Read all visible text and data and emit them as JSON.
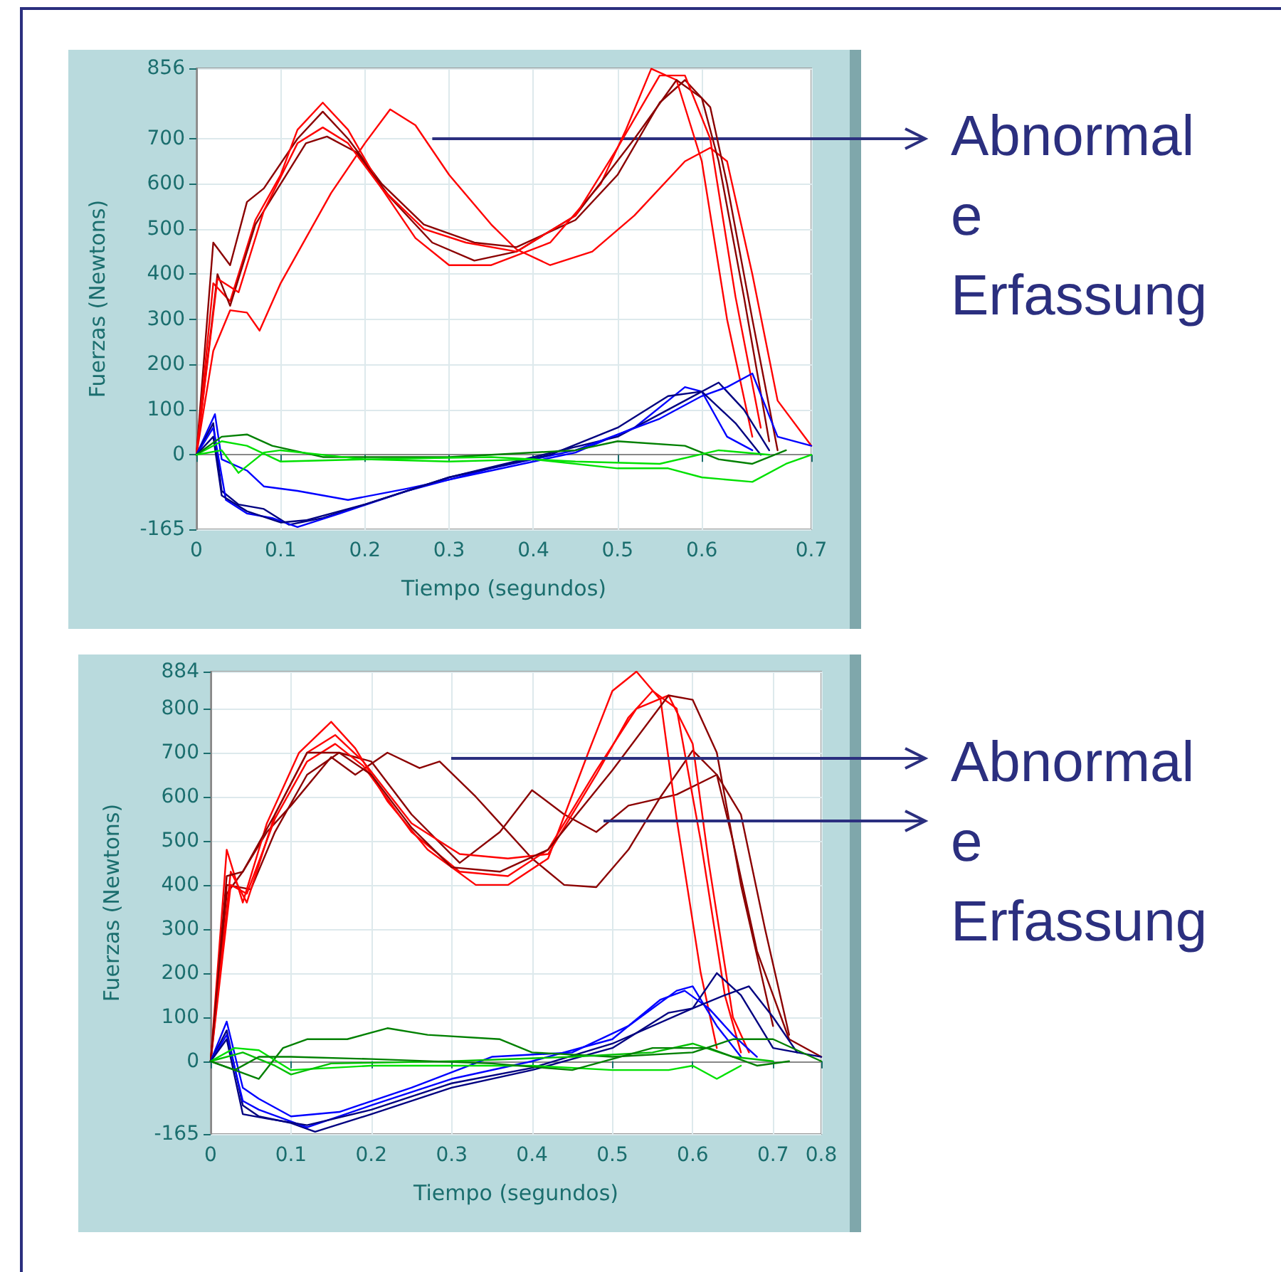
{
  "chart_data": [
    {
      "type": "line",
      "xlabel": "Tiempo (segundos)",
      "ylabel": "Fuerzas (Newtons)",
      "grid": true,
      "marker": "none",
      "line_style": "solid",
      "xlim": [
        0,
        0.73
      ],
      "xticks": [
        0,
        0.1,
        0.2,
        0.3,
        0.4,
        0.5,
        0.6,
        {
          "value": 0.73,
          "label": "0.7"
        }
      ],
      "ylim": [
        -165,
        856
      ],
      "yticks": [
        -165,
        0,
        100,
        200,
        300,
        400,
        500,
        600,
        700,
        856
      ],
      "annotations": [
        {
          "text": "Abnormal\ne\nErfassung",
          "x": 0.28,
          "y": 700
        }
      ],
      "series": [
        {
          "color": "#ff0000",
          "x": [
            0,
            0.02,
            0.04,
            0.06,
            0.075,
            0.1,
            0.13,
            0.16,
            0.2,
            0.23,
            0.26,
            0.3,
            0.35,
            0.38,
            0.42,
            0.47,
            0.52,
            0.58,
            0.61,
            0.63,
            0.66,
            0.69,
            0.73
          ],
          "values": [
            0,
            230,
            320,
            315,
            275,
            380,
            480,
            580,
            690,
            765,
            730,
            620,
            510,
            455,
            420,
            450,
            530,
            650,
            680,
            650,
            400,
            120,
            20
          ]
        },
        {
          "color": "#8b0000",
          "x": [
            0,
            0.02,
            0.04,
            0.06,
            0.08,
            0.12,
            0.15,
            0.18,
            0.22,
            0.27,
            0.33,
            0.38,
            0.45,
            0.5,
            0.55,
            0.58,
            0.61,
            0.63,
            0.66,
            0.69
          ],
          "values": [
            0,
            470,
            420,
            560,
            590,
            700,
            760,
            700,
            600,
            510,
            470,
            460,
            520,
            620,
            780,
            830,
            770,
            600,
            300,
            10
          ]
        },
        {
          "color": "#ff0000",
          "x": [
            0,
            0.02,
            0.04,
            0.07,
            0.1,
            0.12,
            0.15,
            0.18,
            0.22,
            0.26,
            0.3,
            0.35,
            0.42,
            0.48,
            0.51,
            0.54,
            0.57,
            0.6,
            0.63,
            0.66
          ],
          "values": [
            0,
            380,
            340,
            520,
            620,
            720,
            780,
            720,
            590,
            480,
            420,
            420,
            470,
            600,
            720,
            855,
            830,
            650,
            300,
            40
          ]
        },
        {
          "color": "#8b0000",
          "x": [
            0,
            0.025,
            0.04,
            0.07,
            0.1,
            0.13,
            0.155,
            0.19,
            0.23,
            0.28,
            0.33,
            0.38,
            0.45,
            0.52,
            0.57,
            0.6,
            0.62,
            0.65,
            0.68
          ],
          "values": [
            0,
            400,
            330,
            510,
            600,
            690,
            705,
            670,
            570,
            470,
            430,
            450,
            530,
            700,
            830,
            790,
            650,
            350,
            30
          ]
        },
        {
          "color": "#ff0000",
          "x": [
            0,
            0.025,
            0.05,
            0.08,
            0.12,
            0.15,
            0.18,
            0.22,
            0.27,
            0.32,
            0.38,
            0.45,
            0.5,
            0.55,
            0.58,
            0.61,
            0.64,
            0.67
          ],
          "values": [
            0,
            390,
            360,
            540,
            690,
            725,
            690,
            590,
            500,
            470,
            450,
            530,
            680,
            840,
            840,
            700,
            350,
            60
          ]
        },
        {
          "color": "#0000ff",
          "x": [
            0,
            0.022,
            0.03,
            0.06,
            0.08,
            0.12,
            0.18,
            0.25,
            0.35,
            0.45,
            0.52,
            0.58,
            0.6,
            0.63,
            0.66
          ],
          "values": [
            0,
            90,
            -10,
            -35,
            -70,
            -80,
            -100,
            -75,
            -35,
            5,
            60,
            150,
            140,
            40,
            10
          ]
        },
        {
          "color": "#000080",
          "x": [
            0,
            0.02,
            0.03,
            0.05,
            0.08,
            0.11,
            0.15,
            0.2,
            0.3,
            0.4,
            0.5,
            0.58,
            0.62,
            0.65,
            0.68
          ],
          "values": [
            0,
            70,
            -80,
            -110,
            -120,
            -155,
            -140,
            -110,
            -50,
            -5,
            40,
            120,
            160,
            100,
            10
          ]
        },
        {
          "color": "#0000ff",
          "x": [
            0,
            0.02,
            0.035,
            0.06,
            0.09,
            0.12,
            0.17,
            0.25,
            0.35,
            0.45,
            0.55,
            0.6,
            0.63,
            0.66,
            0.69,
            0.73
          ],
          "values": [
            0,
            60,
            -100,
            -130,
            -140,
            -160,
            -130,
            -80,
            -30,
            10,
            80,
            130,
            150,
            180,
            40,
            20
          ]
        },
        {
          "color": "#000080",
          "x": [
            0,
            0.02,
            0.03,
            0.06,
            0.1,
            0.13,
            0.2,
            0.3,
            0.42,
            0.5,
            0.56,
            0.6,
            0.64,
            0.67
          ],
          "values": [
            0,
            40,
            -90,
            -125,
            -150,
            -145,
            -110,
            -50,
            0,
            60,
            130,
            140,
            70,
            0
          ]
        },
        {
          "color": "#00e000",
          "x": [
            0,
            0.03,
            0.06,
            0.1,
            0.2,
            0.3,
            0.4,
            0.5,
            0.56,
            0.6,
            0.66,
            0.7,
            0.73
          ],
          "values": [
            0,
            30,
            20,
            -15,
            -10,
            -15,
            -10,
            -30,
            -30,
            -50,
            -60,
            -20,
            0
          ]
        },
        {
          "color": "#008000",
          "x": [
            0,
            0.03,
            0.06,
            0.09,
            0.15,
            0.3,
            0.45,
            0.5,
            0.58,
            0.62,
            0.66,
            0.7
          ],
          "values": [
            0,
            40,
            45,
            20,
            -5,
            -5,
            10,
            30,
            20,
            -10,
            -20,
            10
          ]
        },
        {
          "color": "#00e000",
          "x": [
            0,
            0.03,
            0.05,
            0.08,
            0.1,
            0.2,
            0.35,
            0.45,
            0.55,
            0.62,
            0.68
          ],
          "values": [
            0,
            10,
            -40,
            5,
            10,
            -10,
            -5,
            -15,
            -20,
            10,
            0
          ]
        }
      ]
    },
    {
      "type": "line",
      "xlabel": "Tiempo (segundos)",
      "ylabel": "Fuerzas (Newtons)",
      "grid": true,
      "marker": "none",
      "line_style": "solid",
      "xlim": [
        0,
        0.76
      ],
      "xticks": [
        0,
        0.1,
        0.2,
        0.3,
        0.4,
        0.5,
        0.6,
        0.7,
        {
          "value": 0.76,
          "label": "0.8"
        }
      ],
      "ylim": [
        -165,
        884
      ],
      "yticks": [
        -165,
        0,
        100,
        200,
        300,
        400,
        500,
        600,
        700,
        800,
        884
      ],
      "annotations": [
        "Abnormal\ne\nErfassung"
      ],
      "series": [
        {
          "color": "#8b0000",
          "x": [
            0,
            0.02,
            0.04,
            0.07,
            0.1,
            0.15,
            0.18,
            0.22,
            0.26,
            0.285,
            0.33,
            0.36,
            0.4,
            0.44,
            0.48,
            0.52,
            0.56,
            0.6,
            0.63,
            0.65,
            0.68,
            0.72,
            0.76
          ],
          "values": [
            0,
            380,
            430,
            520,
            580,
            690,
            650,
            700,
            665,
            680,
            600,
            540,
            460,
            400,
            395,
            480,
            600,
            705,
            650,
            500,
            250,
            50,
            10
          ]
        },
        {
          "color": "#8b0000",
          "x": [
            0,
            0.02,
            0.05,
            0.08,
            0.12,
            0.16,
            0.2,
            0.25,
            0.31,
            0.36,
            0.4,
            0.44,
            0.48,
            0.52,
            0.58,
            0.63,
            0.66,
            0.69,
            0.72
          ],
          "values": [
            0,
            400,
            390,
            520,
            650,
            700,
            680,
            560,
            450,
            520,
            615,
            560,
            520,
            580,
            605,
            650,
            560,
            300,
            60
          ]
        },
        {
          "color": "#ff0000",
          "x": [
            0,
            0.02,
            0.04,
            0.07,
            0.11,
            0.15,
            0.18,
            0.22,
            0.27,
            0.33,
            0.37,
            0.42,
            0.47,
            0.5,
            0.53,
            0.56,
            0.58,
            0.61,
            0.63
          ],
          "values": [
            0,
            480,
            360,
            540,
            700,
            770,
            710,
            590,
            480,
            400,
            400,
            460,
            700,
            840,
            884,
            820,
            550,
            200,
            30
          ]
        },
        {
          "color": "#ff0000",
          "x": [
            0,
            0.025,
            0.045,
            0.08,
            0.12,
            0.155,
            0.19,
            0.25,
            0.31,
            0.37,
            0.42,
            0.48,
            0.52,
            0.55,
            0.58,
            0.61,
            0.64,
            0.66
          ],
          "values": [
            0,
            430,
            360,
            560,
            700,
            740,
            680,
            540,
            470,
            460,
            470,
            650,
            780,
            840,
            800,
            500,
            150,
            20
          ]
        },
        {
          "color": "#ff0000",
          "x": [
            0,
            0.025,
            0.045,
            0.08,
            0.12,
            0.155,
            0.19,
            0.25,
            0.31,
            0.37,
            0.42,
            0.48,
            0.53,
            0.57,
            0.6,
            0.62,
            0.65,
            0.67
          ],
          "values": [
            0,
            400,
            380,
            550,
            680,
            720,
            670,
            520,
            430,
            420,
            480,
            660,
            800,
            830,
            720,
            450,
            100,
            20
          ]
        },
        {
          "color": "#8b0000",
          "x": [
            0,
            0.02,
            0.04,
            0.08,
            0.12,
            0.16,
            0.2,
            0.25,
            0.3,
            0.36,
            0.42,
            0.5,
            0.57,
            0.6,
            0.63,
            0.66,
            0.7
          ],
          "values": [
            0,
            420,
            430,
            560,
            700,
            700,
            650,
            530,
            440,
            430,
            480,
            660,
            830,
            820,
            700,
            400,
            80
          ]
        },
        {
          "color": "#0000ff",
          "x": [
            0,
            0.02,
            0.04,
            0.06,
            0.1,
            0.16,
            0.25,
            0.35,
            0.45,
            0.52,
            0.58,
            0.6,
            0.63,
            0.66
          ],
          "values": [
            0,
            90,
            -60,
            -85,
            -125,
            -115,
            -60,
            10,
            20,
            80,
            160,
            170,
            80,
            10
          ]
        },
        {
          "color": "#000080",
          "x": [
            0,
            0.02,
            0.04,
            0.06,
            0.1,
            0.13,
            0.2,
            0.3,
            0.4,
            0.5,
            0.57,
            0.6,
            0.63,
            0.66,
            0.7,
            0.76
          ],
          "values": [
            0,
            70,
            -100,
            -125,
            -140,
            -160,
            -120,
            -60,
            -20,
            30,
            110,
            120,
            200,
            150,
            30,
            10
          ]
        },
        {
          "color": "#0000ff",
          "x": [
            0,
            0.02,
            0.04,
            0.06,
            0.12,
            0.2,
            0.3,
            0.4,
            0.5,
            0.56,
            0.59,
            0.62,
            0.65,
            0.68
          ],
          "values": [
            0,
            60,
            -90,
            -110,
            -150,
            -100,
            -40,
            0,
            50,
            140,
            160,
            120,
            60,
            10
          ]
        },
        {
          "color": "#000080",
          "x": [
            0,
            0.02,
            0.04,
            0.07,
            0.12,
            0.2,
            0.3,
            0.4,
            0.5,
            0.6,
            0.64,
            0.67,
            0.7,
            0.73
          ],
          "values": [
            0,
            50,
            -120,
            -130,
            -145,
            -110,
            -50,
            -15,
            40,
            120,
            150,
            170,
            100,
            20
          ]
        },
        {
          "color": "#008000",
          "x": [
            0,
            0.03,
            0.06,
            0.09,
            0.12,
            0.17,
            0.22,
            0.27,
            0.36,
            0.4,
            0.5,
            0.6,
            0.65,
            0.7,
            0.76
          ],
          "values": [
            0,
            -20,
            -40,
            30,
            50,
            50,
            75,
            60,
            50,
            20,
            10,
            20,
            50,
            50,
            0
          ]
        },
        {
          "color": "#00e000",
          "x": [
            0,
            0.03,
            0.06,
            0.1,
            0.2,
            0.3,
            0.4,
            0.5,
            0.57,
            0.6,
            0.63,
            0.66
          ],
          "values": [
            0,
            30,
            25,
            -20,
            -10,
            -10,
            -10,
            -20,
            -20,
            -10,
            -40,
            -10
          ]
        },
        {
          "color": "#00c000",
          "x": [
            0,
            0.04,
            0.08,
            0.1,
            0.15,
            0.3,
            0.45,
            0.55,
            0.6,
            0.65,
            0.7
          ],
          "values": [
            0,
            20,
            -10,
            -30,
            -5,
            0,
            10,
            20,
            40,
            10,
            0
          ]
        },
        {
          "color": "#008000",
          "x": [
            0,
            0.03,
            0.06,
            0.1,
            0.2,
            0.35,
            0.45,
            0.55,
            0.62,
            0.68,
            0.72
          ],
          "values": [
            0,
            -20,
            10,
            10,
            5,
            -5,
            -20,
            30,
            30,
            -10,
            0
          ]
        }
      ]
    }
  ]
}
